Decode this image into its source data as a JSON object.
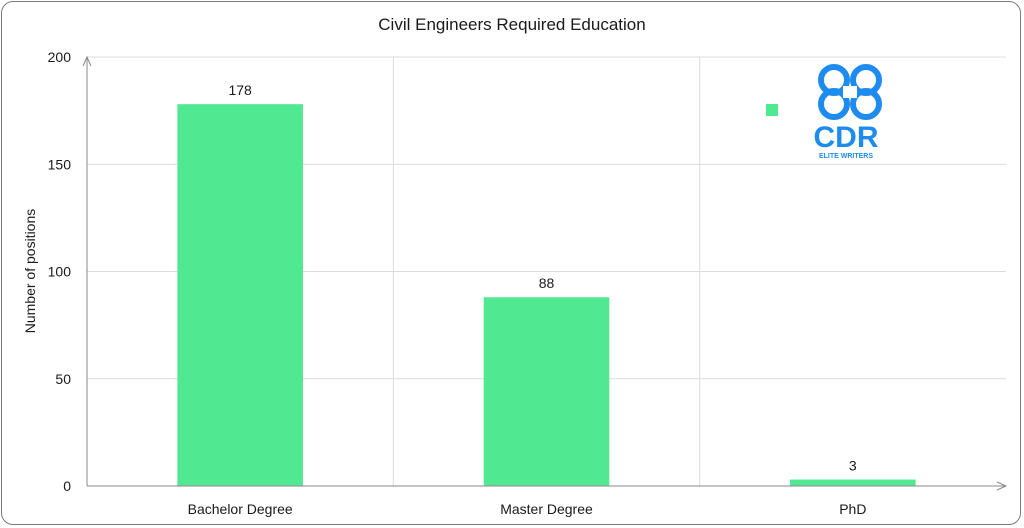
{
  "chart_data": {
    "type": "bar",
    "title": "Civil Engineers Required Education",
    "xlabel": "",
    "ylabel": "Number of positions",
    "categories": [
      "Bachelor Degree",
      "Master Degree",
      "PhD"
    ],
    "values": [
      178,
      88,
      3
    ],
    "ylim": [
      0,
      200
    ],
    "yticks": [
      0,
      50,
      100,
      150,
      200
    ],
    "grid": true,
    "bar_color": "#50E890",
    "legend": "top-right",
    "gridline_color": "#dcdcdc"
  },
  "logo": {
    "text": "CDR",
    "subtext": "ELITE WRITERS",
    "color": "#1E8BEF"
  }
}
